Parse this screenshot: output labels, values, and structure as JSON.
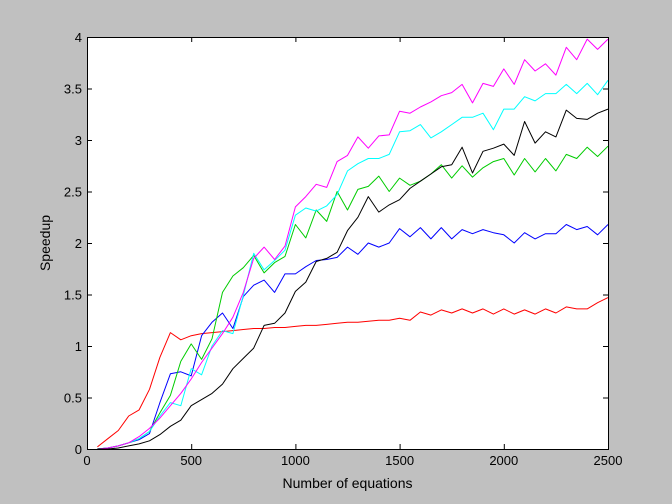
{
  "chart_data": {
    "type": "line",
    "xlabel": "Number of equations",
    "ylabel": "Speedup",
    "xlim": [
      0,
      2500
    ],
    "ylim": [
      0,
      4
    ],
    "xticks": [
      0,
      500,
      1000,
      1500,
      2000,
      2500
    ],
    "yticks": [
      0,
      0.5,
      1,
      1.5,
      2,
      2.5,
      3,
      3.5,
      4
    ],
    "grid": false,
    "legend": "none",
    "colors": {
      "background": "#c0c0c0",
      "plot_area": "#ffffff",
      "axes": "#000000"
    },
    "series": [
      {
        "color": "#ff0000",
        "x": [
          50,
          100,
          150,
          200,
          250,
          300,
          350,
          400,
          450,
          500,
          550,
          600,
          650,
          700,
          750,
          800,
          850,
          900,
          950,
          1000,
          1050,
          1100,
          1150,
          1200,
          1250,
          1300,
          1350,
          1400,
          1450,
          1500,
          1550,
          1600,
          1650,
          1700,
          1750,
          1800,
          1850,
          1900,
          1950,
          2000,
          2050,
          2100,
          2150,
          2200,
          2250,
          2300,
          2350,
          2400,
          2450,
          2500
        ],
        "y": [
          0.02,
          0.1,
          0.18,
          0.32,
          0.38,
          0.58,
          0.89,
          1.13,
          1.06,
          1.1,
          1.12,
          1.13,
          1.14,
          1.15,
          1.16,
          1.17,
          1.17,
          1.18,
          1.18,
          1.19,
          1.2,
          1.2,
          1.21,
          1.22,
          1.23,
          1.23,
          1.24,
          1.25,
          1.25,
          1.27,
          1.25,
          1.33,
          1.3,
          1.35,
          1.32,
          1.36,
          1.32,
          1.36,
          1.31,
          1.36,
          1.31,
          1.35,
          1.31,
          1.36,
          1.32,
          1.38,
          1.36,
          1.36,
          1.42,
          1.47
        ]
      },
      {
        "color": "#0000ff",
        "x": [
          50,
          100,
          150,
          200,
          250,
          300,
          350,
          400,
          450,
          500,
          550,
          600,
          650,
          700,
          750,
          800,
          850,
          900,
          950,
          1000,
          1050,
          1100,
          1150,
          1200,
          1250,
          1300,
          1350,
          1400,
          1450,
          1500,
          1550,
          1600,
          1650,
          1700,
          1750,
          1800,
          1850,
          1900,
          1950,
          2000,
          2050,
          2100,
          2150,
          2200,
          2250,
          2300,
          2350,
          2400,
          2450,
          2500
        ],
        "y": [
          0,
          0.01,
          0.03,
          0.06,
          0.09,
          0.15,
          0.45,
          0.73,
          0.75,
          0.71,
          1.1,
          1.23,
          1.32,
          1.17,
          1.48,
          1.59,
          1.64,
          1.52,
          1.7,
          1.7,
          1.77,
          1.83,
          1.84,
          1.86,
          1.96,
          1.89,
          2.0,
          1.96,
          2.0,
          2.14,
          2.06,
          2.15,
          2.04,
          2.15,
          2.04,
          2.13,
          2.09,
          2.13,
          2.1,
          2.08,
          2.0,
          2.1,
          2.04,
          2.09,
          2.09,
          2.18,
          2.13,
          2.16,
          2.08,
          2.18
        ]
      },
      {
        "color": "#00cc00",
        "x": [
          50,
          100,
          150,
          200,
          250,
          300,
          350,
          400,
          450,
          500,
          550,
          600,
          650,
          700,
          750,
          800,
          850,
          900,
          950,
          1000,
          1050,
          1100,
          1150,
          1200,
          1250,
          1300,
          1350,
          1400,
          1450,
          1500,
          1550,
          1600,
          1650,
          1700,
          1750,
          1800,
          1850,
          1900,
          1950,
          2000,
          2050,
          2100,
          2150,
          2200,
          2250,
          2300,
          2350,
          2400,
          2450,
          2500
        ],
        "y": [
          0,
          0.01,
          0.03,
          0.06,
          0.1,
          0.17,
          0.35,
          0.52,
          0.85,
          1.02,
          0.87,
          1.07,
          1.52,
          1.68,
          1.76,
          1.88,
          1.71,
          1.81,
          1.87,
          2.18,
          2.05,
          2.32,
          2.21,
          2.5,
          2.32,
          2.52,
          2.55,
          2.65,
          2.5,
          2.63,
          2.56,
          2.6,
          2.67,
          2.76,
          2.63,
          2.75,
          2.64,
          2.73,
          2.79,
          2.82,
          2.66,
          2.82,
          2.69,
          2.82,
          2.7,
          2.86,
          2.82,
          2.93,
          2.84,
          2.94
        ]
      },
      {
        "color": "#00ffff",
        "x": [
          50,
          100,
          150,
          200,
          250,
          300,
          350,
          400,
          450,
          500,
          550,
          600,
          650,
          700,
          750,
          800,
          850,
          900,
          950,
          1000,
          1050,
          1100,
          1150,
          1200,
          1250,
          1300,
          1350,
          1400,
          1450,
          1500,
          1550,
          1600,
          1650,
          1700,
          1750,
          1800,
          1850,
          1900,
          1950,
          2000,
          2050,
          2100,
          2150,
          2200,
          2250,
          2300,
          2350,
          2400,
          2450,
          2500
        ],
        "y": [
          0,
          0.01,
          0.03,
          0.06,
          0.1,
          0.17,
          0.32,
          0.45,
          0.42,
          0.78,
          0.72,
          1.0,
          1.15,
          1.12,
          1.49,
          1.9,
          1.74,
          1.83,
          1.93,
          2.27,
          2.34,
          2.31,
          2.36,
          2.47,
          2.7,
          2.77,
          2.82,
          2.82,
          2.86,
          3.08,
          3.09,
          3.15,
          3.02,
          3.08,
          3.15,
          3.22,
          3.22,
          3.26,
          3.1,
          3.3,
          3.3,
          3.42,
          3.38,
          3.45,
          3.45,
          3.54,
          3.45,
          3.55,
          3.44,
          3.58
        ]
      },
      {
        "color": "#ff00ff",
        "x": [
          50,
          100,
          150,
          200,
          250,
          300,
          350,
          400,
          450,
          500,
          550,
          600,
          650,
          700,
          750,
          800,
          850,
          900,
          950,
          1000,
          1050,
          1100,
          1150,
          1200,
          1250,
          1300,
          1350,
          1400,
          1450,
          1500,
          1550,
          1600,
          1650,
          1700,
          1750,
          1800,
          1850,
          1900,
          1950,
          2000,
          2050,
          2100,
          2150,
          2200,
          2250,
          2300,
          2350,
          2400,
          2450,
          2500
        ],
        "y": [
          0,
          0.01,
          0.03,
          0.06,
          0.12,
          0.2,
          0.3,
          0.42,
          0.54,
          0.68,
          0.84,
          0.98,
          1.12,
          1.28,
          1.52,
          1.85,
          1.96,
          1.84,
          1.97,
          2.35,
          2.45,
          2.57,
          2.54,
          2.79,
          2.85,
          3.03,
          2.92,
          3.04,
          3.05,
          3.28,
          3.26,
          3.32,
          3.37,
          3.43,
          3.46,
          3.54,
          3.36,
          3.55,
          3.52,
          3.69,
          3.54,
          3.78,
          3.67,
          3.74,
          3.63,
          3.9,
          3.78,
          3.98,
          3.88,
          3.98
        ]
      },
      {
        "color": "#000000",
        "x": [
          50,
          100,
          150,
          200,
          250,
          300,
          350,
          400,
          450,
          500,
          550,
          600,
          650,
          700,
          750,
          800,
          850,
          900,
          950,
          1000,
          1050,
          1100,
          1150,
          1200,
          1250,
          1300,
          1350,
          1400,
          1450,
          1500,
          1550,
          1600,
          1650,
          1700,
          1750,
          1800,
          1850,
          1900,
          1950,
          2000,
          2050,
          2100,
          2150,
          2200,
          2250,
          2300,
          2350,
          2400,
          2450,
          2500
        ],
        "y": [
          0,
          0,
          0.01,
          0.03,
          0.05,
          0.08,
          0.14,
          0.22,
          0.28,
          0.42,
          0.48,
          0.54,
          0.63,
          0.78,
          0.88,
          0.98,
          1.2,
          1.22,
          1.32,
          1.53,
          1.62,
          1.82,
          1.85,
          1.91,
          2.12,
          2.25,
          2.45,
          2.3,
          2.37,
          2.42,
          2.53,
          2.6,
          2.67,
          2.74,
          2.76,
          2.93,
          2.68,
          2.89,
          2.92,
          2.96,
          2.85,
          3.18,
          2.97,
          3.08,
          3.03,
          3.29,
          3.21,
          3.2,
          3.26,
          3.3
        ]
      }
    ]
  }
}
